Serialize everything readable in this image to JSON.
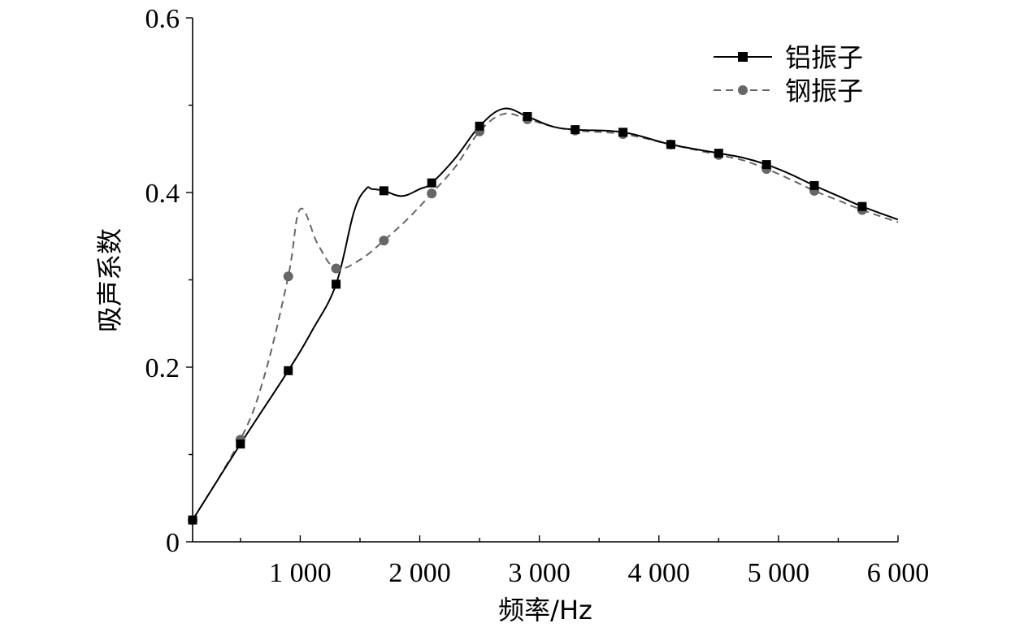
{
  "chart_data": {
    "type": "line",
    "xlabel": "频率/Hz",
    "ylabel": "吸声系数",
    "xlim": [
      100,
      6000
    ],
    "ylim": [
      0,
      0.6
    ],
    "x_ticks": [
      {
        "value": 1000,
        "label": "1 000"
      },
      {
        "value": 2000,
        "label": "2 000"
      },
      {
        "value": 3000,
        "label": "3 000"
      },
      {
        "value": 4000,
        "label": "4 000"
      },
      {
        "value": 5000,
        "label": "5 000"
      },
      {
        "value": 6000,
        "label": "6 000"
      }
    ],
    "y_ticks": [
      {
        "value": 0,
        "label": "0"
      },
      {
        "value": 0.2,
        "label": "0.2"
      },
      {
        "value": 0.4,
        "label": "0.4"
      },
      {
        "value": 0.6,
        "label": "0.6"
      }
    ],
    "y_minor_ticks": [
      0.1,
      0.3,
      0.5
    ],
    "x_minor_ticks": [
      500,
      1500,
      2500,
      3500,
      4500,
      5500
    ],
    "legend_position": "top-right",
    "series": [
      {
        "name": "铝振子",
        "color": "#000000",
        "dash": "solid",
        "marker": "square",
        "line_x": [
          100,
          500,
          900,
          1100,
          1300,
          1450,
          1550,
          1600,
          1700,
          1850,
          2000,
          2100,
          2300,
          2500,
          2700,
          2900,
          3100,
          3300,
          3700,
          4100,
          4500,
          4700,
          4900,
          5100,
          5300,
          5500,
          5700,
          6000
        ],
        "line_y": [
          0.025,
          0.112,
          0.196,
          0.242,
          0.295,
          0.378,
          0.404,
          0.404,
          0.402,
          0.396,
          0.404,
          0.411,
          0.44,
          0.476,
          0.496,
          0.487,
          0.476,
          0.472,
          0.469,
          0.455,
          0.445,
          0.44,
          0.432,
          0.421,
          0.408,
          0.396,
          0.384,
          0.369
        ],
        "marker_x": [
          100,
          500,
          900,
          1300,
          1700,
          2100,
          2500,
          2900,
          3300,
          3700,
          4100,
          4500,
          4900,
          5300,
          5700
        ],
        "marker_y": [
          0.025,
          0.112,
          0.196,
          0.295,
          0.402,
          0.411,
          0.476,
          0.487,
          0.472,
          0.469,
          0.455,
          0.445,
          0.432,
          0.408,
          0.384
        ]
      },
      {
        "name": "钢振子",
        "color": "#666666",
        "dash": "dashed",
        "marker": "circle",
        "line_x": [
          100,
          500,
          700,
          900,
          1000,
          1150,
          1300,
          1500,
          1700,
          1900,
          2100,
          2300,
          2500,
          2700,
          2900,
          3100,
          3300,
          3700,
          4100,
          4500,
          4700,
          4900,
          5100,
          5300,
          5500,
          5700,
          6000
        ],
        "line_y": [
          0.025,
          0.117,
          0.19,
          0.304,
          0.381,
          0.34,
          0.313,
          0.323,
          0.345,
          0.37,
          0.399,
          0.43,
          0.47,
          0.49,
          0.484,
          0.476,
          0.471,
          0.467,
          0.455,
          0.443,
          0.437,
          0.427,
          0.415,
          0.402,
          0.391,
          0.38,
          0.366
        ],
        "marker_x": [
          100,
          500,
          900,
          1300,
          1700,
          2100,
          2500,
          2900,
          3300,
          3700,
          4100,
          4500,
          4900,
          5300,
          5700
        ],
        "marker_y": [
          0.025,
          0.117,
          0.304,
          0.313,
          0.345,
          0.399,
          0.47,
          0.484,
          0.471,
          0.467,
          0.455,
          0.443,
          0.427,
          0.402,
          0.38
        ]
      }
    ]
  }
}
